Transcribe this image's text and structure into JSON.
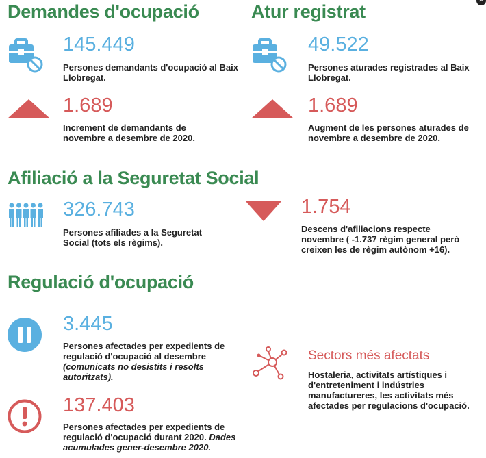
{
  "demandes": {
    "title": "Demandes d'ocupació",
    "total": "145.449",
    "total_desc": "Persones demandants d'ocupació al Baix Llobregat.",
    "change": "1.689",
    "change_desc": "Increment de demandants de novembre a desembre de 2020."
  },
  "atur": {
    "title": "Atur registrat",
    "total": "49.522",
    "total_desc": "Persones aturades registrades al Baix Llobregat.",
    "change": "1.689",
    "change_desc": "Augment de les persones aturades de novembre a desembre de 2020."
  },
  "afiliacio": {
    "title": "Afiliació a la Seguretat Social",
    "total": "326.743",
    "total_desc": "Persones afiliades a la Seguretat Social (tots els règims).",
    "change": "1.754",
    "change_desc": "Descens d'afiliacions respecte novembre ( -1.737 règim general però creixen les de règim autònom +16)."
  },
  "regulacio": {
    "title": "Regulació d'ocupació",
    "desembre": "3.445",
    "desembre_desc": "Persones afectades per expedients de regulació d'ocupació al desembre",
    "desembre_note": "(comunicats no desistits i resolts autoritzats).",
    "acumulat": "137.403",
    "acumulat_desc": "Persones afectades per expedients de regulació d'ocupació durant 2020.",
    "acumulat_note": "Dades acumulades gener-desembre 2020."
  },
  "sectors": {
    "title": "Sectors més afectats",
    "desc": "Hostaleria,  activitats artístiques i d'entreteniment i indústries manufactureres, les activitats més afectades per regulacions d'ocupació."
  },
  "icons": {
    "briefcase": "briefcase-blocked-icon",
    "up": "triangle-up-icon",
    "down": "triangle-down-icon",
    "people": "people-group-icon",
    "pause": "pause-circle-icon",
    "alert": "exclamation-circle-icon",
    "network": "network-nodes-icon",
    "close": "close-icon"
  },
  "colors": {
    "heading": "#3a8a52",
    "blue": "#5ab0e0",
    "red": "#d65a5a"
  }
}
